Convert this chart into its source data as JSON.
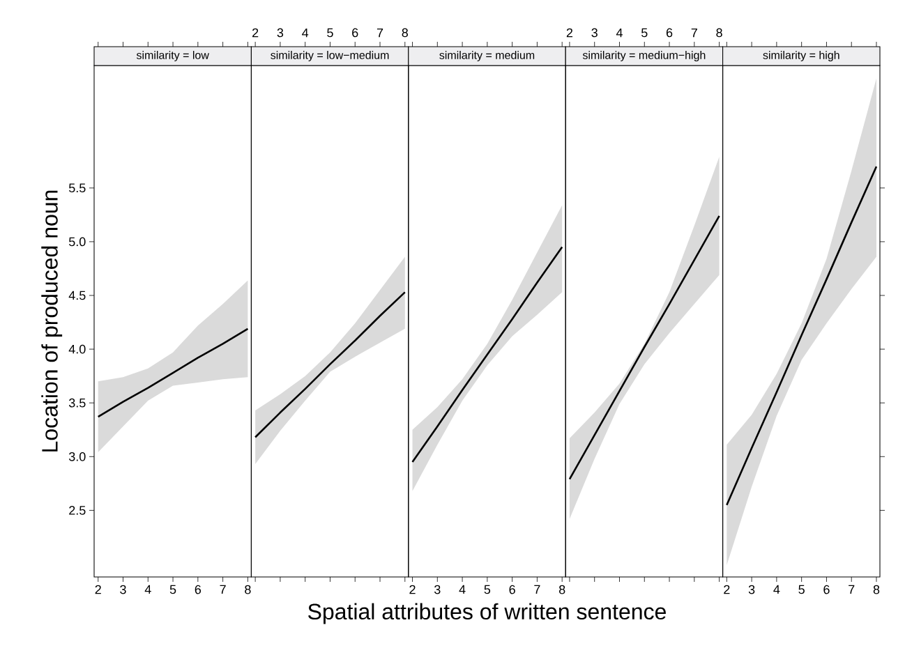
{
  "chart_data": [
    {
      "type": "line",
      "title": "similarity = low",
      "ylabel": "Location of produced noun",
      "xlim": [
        1.84,
        8.14
      ],
      "xticks": [
        2,
        3,
        4,
        5,
        6,
        7,
        8
      ],
      "ylim": [
        1.88,
        6.64
      ],
      "yticks": [
        2.5,
        {
          "value": 3.0,
          "label": "3.0"
        },
        3.5,
        {
          "value": 4.0,
          "label": "4.0"
        },
        4.5,
        {
          "value": 5.0,
          "label": "5.0"
        },
        5.5
      ],
      "series": [
        {
          "color": "#000000",
          "x": [
            2,
            3,
            4,
            5,
            6,
            7,
            8
          ],
          "values": [
            3.37,
            3.51,
            3.64,
            3.78,
            3.92,
            4.05,
            4.19
          ],
          "lower": [
            3.04,
            3.28,
            3.52,
            3.66,
            3.69,
            3.72,
            3.74
          ],
          "upper": [
            3.7,
            3.74,
            3.82,
            3.97,
            4.22,
            4.42,
            4.64
          ]
        }
      ]
    },
    {
      "type": "line",
      "title": "similarity = low−medium",
      "xlim": [
        1.84,
        8.14
      ],
      "xticks": [
        2,
        3,
        4,
        5,
        6,
        7,
        8
      ],
      "ylim": [
        1.88,
        6.64
      ],
      "tick_labels": "x",
      "series": [
        {
          "color": "#000000",
          "x": [
            2,
            3,
            4,
            5,
            6,
            7,
            8
          ],
          "values": [
            3.18,
            3.41,
            3.63,
            3.86,
            4.08,
            4.31,
            4.53
          ],
          "lower": [
            2.93,
            3.24,
            3.52,
            3.79,
            3.93,
            4.06,
            4.19
          ],
          "upper": [
            3.43,
            3.58,
            3.75,
            3.97,
            4.24,
            4.55,
            4.86
          ]
        }
      ]
    },
    {
      "type": "line",
      "title": "similarity = medium",
      "xlabel": "Spatial attributes of written sentence",
      "xlim": [
        1.84,
        8.14
      ],
      "xticks": [
        2,
        3,
        4,
        5,
        6,
        7,
        8
      ],
      "ylim": [
        1.88,
        6.64
      ],
      "tick_labels": "x",
      "series": [
        {
          "color": "#000000",
          "x": [
            2,
            3,
            4,
            5,
            6,
            7,
            8
          ],
          "values": [
            2.95,
            3.28,
            3.62,
            3.95,
            4.28,
            4.62,
            4.95
          ],
          "lower": [
            2.68,
            3.11,
            3.52,
            3.85,
            4.12,
            4.32,
            4.53
          ],
          "upper": [
            3.25,
            3.46,
            3.72,
            4.05,
            4.46,
            4.9,
            5.34
          ]
        }
      ]
    },
    {
      "type": "line",
      "title": "similarity = medium−high",
      "xlim": [
        1.84,
        8.14
      ],
      "xticks": [
        2,
        3,
        4,
        5,
        6,
        7,
        8
      ],
      "ylim": [
        1.88,
        6.64
      ],
      "tick_labels": "x",
      "series": [
        {
          "color": "#000000",
          "x": [
            2,
            3,
            4,
            5,
            6,
            7,
            8
          ],
          "values": [
            2.79,
            3.2,
            3.61,
            4.02,
            4.42,
            4.83,
            5.24
          ],
          "lower": [
            2.42,
            2.98,
            3.49,
            3.86,
            4.15,
            4.42,
            4.69
          ],
          "upper": [
            3.17,
            3.41,
            3.68,
            4.05,
            4.53,
            5.15,
            5.79
          ]
        }
      ]
    },
    {
      "type": "line",
      "title": "similarity = high",
      "xlim": [
        1.84,
        8.14
      ],
      "xticks": [
        2,
        3,
        4,
        5,
        6,
        7,
        8
      ],
      "ylim": [
        1.88,
        6.64
      ],
      "yticks": [
        2.5,
        3.0,
        3.5,
        4.0,
        4.5,
        5.0,
        5.5
      ],
      "tick_labels": "x",
      "series": [
        {
          "color": "#000000",
          "x": [
            2,
            3,
            4,
            5,
            6,
            7,
            8
          ],
          "values": [
            2.55,
            3.08,
            3.6,
            4.13,
            4.65,
            5.18,
            5.7
          ],
          "lower": [
            1.99,
            2.72,
            3.38,
            3.9,
            4.24,
            4.56,
            4.86
          ],
          "upper": [
            3.11,
            3.39,
            3.77,
            4.24,
            4.84,
            5.66,
            6.52
          ]
        }
      ]
    }
  ]
}
